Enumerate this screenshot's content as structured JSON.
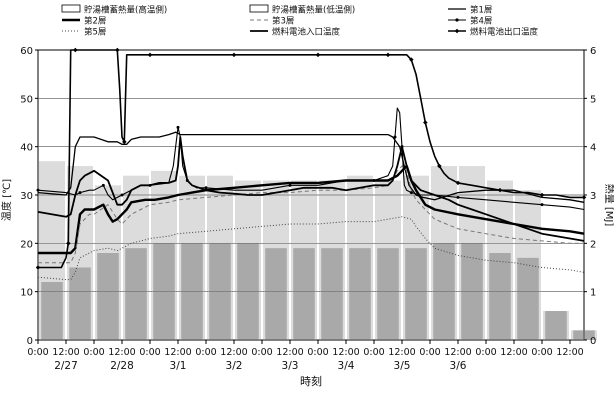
{
  "chart_data": {
    "type": "line",
    "title": "",
    "xlabel": "時刻",
    "ylabel_left": "温度 [℃]",
    "ylabel_right": "熱量 [MJ]",
    "ylim_left": [
      0,
      60
    ],
    "ylim_right": [
      0,
      6
    ],
    "yticks_left": [
      0,
      10,
      20,
      30,
      40,
      50,
      60
    ],
    "yticks_right": [
      0,
      1,
      2,
      3,
      4,
      5,
      6
    ],
    "xlim_hours": [
      0,
      234
    ],
    "x_unit": "hours from 2/27 0:00",
    "xtick_labels": [
      "0:00",
      "12:00",
      "0:00",
      "12:00",
      "0:00",
      "12:00",
      "0:00",
      "12:00",
      "0:00",
      "12:00",
      "0:00",
      "12:00",
      "0:00",
      "12:00",
      "0:00",
      "12:00",
      "0:00",
      "12:00",
      "0:00",
      "12:00"
    ],
    "date_labels": [
      {
        "label": "2/27",
        "hour": 12
      },
      {
        "label": "2/28",
        "hour": 36
      },
      {
        "label": "3/1",
        "hour": 60
      },
      {
        "label": "3/2",
        "hour": 84
      },
      {
        "label": "3/3",
        "hour": 108
      },
      {
        "label": "3/4",
        "hour": 132
      },
      {
        "label": "3/5",
        "hour": 156
      },
      {
        "label": "3/6",
        "hour": 180
      }
    ],
    "grid": true,
    "legend_position": "top",
    "bar_series": [
      {
        "name": "貯湯槽蓄熱量(高温側)",
        "axis": "right",
        "color": "#9a9a9a",
        "x": [
          0,
          12,
          24,
          36,
          48,
          60,
          72,
          84,
          96,
          108,
          120,
          132,
          144,
          156,
          168,
          180,
          192,
          204,
          216,
          228
        ],
        "values": [
          3.7,
          3.6,
          3.2,
          3.4,
          3.5,
          3.4,
          3.4,
          3.3,
          3.3,
          3.3,
          3.3,
          3.4,
          3.3,
          3.4,
          3.6,
          3.6,
          3.3,
          3.1,
          0.6,
          0.2
        ]
      },
      {
        "name": "貯湯槽蓄熱量(低温側)",
        "axis": "right",
        "color": "#6a6a6a",
        "x": [
          0,
          12,
          24,
          36,
          48,
          60,
          72,
          84,
          96,
          108,
          120,
          132,
          144,
          156,
          168,
          180,
          192,
          204,
          216,
          228
        ],
        "values": [
          1.2,
          1.5,
          1.8,
          1.9,
          2.0,
          2.0,
          2.0,
          2.0,
          1.9,
          1.9,
          1.9,
          1.9,
          1.9,
          1.9,
          2.0,
          2.0,
          1.8,
          1.7,
          0.6,
          0.2
        ]
      }
    ],
    "series": [
      {
        "name": "第1層",
        "axis": "left",
        "color": "#000000",
        "width": 1.3,
        "dash": "",
        "marker": "",
        "x": [
          0,
          12,
          14,
          16,
          18,
          24,
          30,
          34,
          36,
          38,
          40,
          44,
          48,
          52,
          56,
          59,
          61,
          63,
          66,
          72,
          84,
          96,
          108,
          120,
          132,
          144,
          150,
          152,
          155,
          157,
          159,
          162,
          165,
          170,
          180,
          192,
          204,
          216,
          228,
          234
        ],
        "y": [
          30.5,
          30,
          31.5,
          40,
          42,
          42,
          41,
          41,
          40.5,
          40.5,
          41.5,
          42,
          42,
          42,
          42.5,
          43,
          42.5,
          42.5,
          42.5,
          42.5,
          42.5,
          42.5,
          42.5,
          42.5,
          42.5,
          42.5,
          42.5,
          42,
          40,
          36,
          32,
          30,
          29.5,
          29,
          30.5,
          31,
          31,
          29.5,
          29,
          28.5
        ]
      },
      {
        "name": "第2層",
        "axis": "left",
        "color": "#000000",
        "width": 2.4,
        "dash": "",
        "marker": "",
        "x": [
          0,
          14,
          16,
          18,
          20,
          24,
          28,
          30,
          32,
          34,
          36,
          38,
          40,
          46,
          50,
          56,
          60,
          66,
          72,
          84,
          96,
          108,
          120,
          132,
          144,
          150,
          152,
          154,
          156,
          158,
          160,
          162,
          166,
          170,
          180,
          192,
          204,
          216,
          228,
          234
        ],
        "y": [
          18,
          18,
          19,
          26,
          27,
          27,
          28,
          26,
          24.5,
          25,
          26,
          27,
          28.5,
          29,
          29,
          29.5,
          30,
          30.5,
          31,
          31.5,
          32,
          32.5,
          32.5,
          33,
          33,
          33,
          33.5,
          34,
          35,
          36,
          33,
          31,
          28,
          27,
          26,
          25,
          24,
          23,
          22.5,
          22
        ]
      },
      {
        "name": "第3層",
        "axis": "left",
        "color": "#777777",
        "width": 1.0,
        "dash": "4,3",
        "marker": "",
        "x": [
          0,
          14,
          16,
          18,
          22,
          24,
          30,
          34,
          36,
          38,
          40,
          44,
          48,
          56,
          60,
          72,
          84,
          96,
          108,
          120,
          132,
          144,
          150,
          152,
          154,
          156,
          158,
          160,
          162,
          166,
          170,
          180,
          192,
          204,
          216,
          228,
          234
        ],
        "y": [
          16,
          16,
          18,
          24,
          26,
          26,
          28,
          25,
          24,
          25,
          26,
          27,
          28,
          28.5,
          29,
          29.5,
          30,
          30.5,
          30.5,
          31,
          31,
          31.5,
          32,
          33,
          35,
          36,
          35,
          31,
          29,
          27,
          25,
          23,
          22,
          21,
          20.5,
          20,
          20
        ]
      },
      {
        "name": "第4層",
        "axis": "left",
        "color": "#000000",
        "width": 1.1,
        "dash": "",
        "marker": "dot",
        "x": [
          0,
          12,
          16,
          18,
          22,
          24,
          28,
          30,
          32,
          36,
          40,
          44,
          48,
          56,
          58,
          60,
          61,
          62,
          64,
          66,
          68,
          72,
          84,
          96,
          108,
          120,
          132,
          144,
          150,
          152,
          153,
          154,
          155,
          156,
          157,
          158,
          160,
          164,
          170,
          180,
          192,
          204,
          216,
          228,
          234
        ],
        "y": [
          31,
          30.5,
          30,
          30.5,
          31,
          31,
          32,
          30,
          29,
          30,
          31,
          32,
          32,
          32.5,
          36,
          44,
          42,
          36,
          33,
          32,
          31.5,
          31.5,
          31,
          31,
          32,
          32,
          33,
          33,
          34,
          36,
          42,
          48,
          47,
          40,
          32,
          31,
          30.5,
          30,
          30,
          29.5,
          29,
          28.5,
          28,
          27.5,
          27
        ]
      },
      {
        "name": "第5層",
        "axis": "left",
        "color": "#444444",
        "width": 1.0,
        "dash": "1,2",
        "marker": "",
        "x": [
          0,
          12,
          14,
          16,
          18,
          22,
          24,
          30,
          34,
          36,
          40,
          44,
          48,
          56,
          60,
          72,
          84,
          96,
          108,
          120,
          132,
          144,
          150,
          156,
          160,
          162,
          166,
          170,
          180,
          192,
          204,
          216,
          228,
          234
        ],
        "y": [
          13,
          12.5,
          12.5,
          14,
          17,
          18,
          18.5,
          19,
          18.5,
          19,
          20,
          20.5,
          21,
          21.5,
          22,
          22.5,
          23,
          23.5,
          24,
          24,
          24.5,
          24.5,
          25,
          25.5,
          25,
          23.5,
          21,
          19,
          17.5,
          16.5,
          16,
          15,
          14.5,
          14
        ]
      },
      {
        "name": "燃料電池入口温度",
        "axis": "left",
        "color": "#000000",
        "width": 1.8,
        "dash": "",
        "marker": "",
        "x": [
          0,
          12,
          14,
          16,
          18,
          20,
          22,
          24,
          30,
          34,
          36,
          38,
          40,
          44,
          48,
          52,
          56,
          59,
          60,
          61,
          62,
          64,
          66,
          72,
          78,
          84,
          90,
          96,
          102,
          108,
          114,
          120,
          126,
          132,
          138,
          144,
          150,
          152,
          154,
          156,
          158,
          160,
          164,
          170,
          176,
          180,
          186,
          192,
          198,
          204,
          210,
          216,
          222,
          228,
          234
        ],
        "y": [
          26.5,
          25.5,
          26,
          30,
          33,
          34,
          34.5,
          35,
          33,
          28,
          28,
          29,
          31,
          32,
          32,
          32.5,
          32.5,
          33,
          36,
          42,
          38,
          33,
          32,
          31,
          30.5,
          30.3,
          30,
          30,
          30.5,
          31,
          31.5,
          31.5,
          31.5,
          31,
          31.5,
          32,
          32,
          33,
          36,
          40,
          36,
          33,
          31,
          30,
          29,
          28,
          27,
          26,
          25,
          24,
          23,
          22,
          21.5,
          21,
          20.5
        ]
      },
      {
        "name": "燃料電池出口温度",
        "axis": "left",
        "color": "#000000",
        "width": 1.6,
        "dash": "",
        "marker": "diamond",
        "x": [
          0,
          10,
          12,
          13,
          14,
          15,
          16,
          24,
          30,
          34,
          35,
          36,
          37,
          38,
          42,
          48,
          60,
          72,
          84,
          96,
          108,
          120,
          132,
          144,
          150,
          156,
          158,
          160,
          162,
          164,
          166,
          168,
          170,
          172,
          174,
          176,
          180,
          186,
          192,
          198,
          204,
          210,
          216,
          222,
          228,
          234
        ],
        "y": [
          15,
          15,
          17,
          20,
          60,
          60,
          60,
          60,
          60,
          60,
          52,
          42,
          41,
          59,
          59,
          59,
          59,
          59,
          59,
          59,
          59,
          59,
          59,
          59,
          59,
          59,
          59,
          58,
          55,
          50,
          45,
          41,
          38,
          36,
          34.5,
          33.5,
          32.5,
          32,
          31.5,
          31,
          30.5,
          30.5,
          30,
          30,
          29.5,
          29.5
        ]
      }
    ]
  }
}
